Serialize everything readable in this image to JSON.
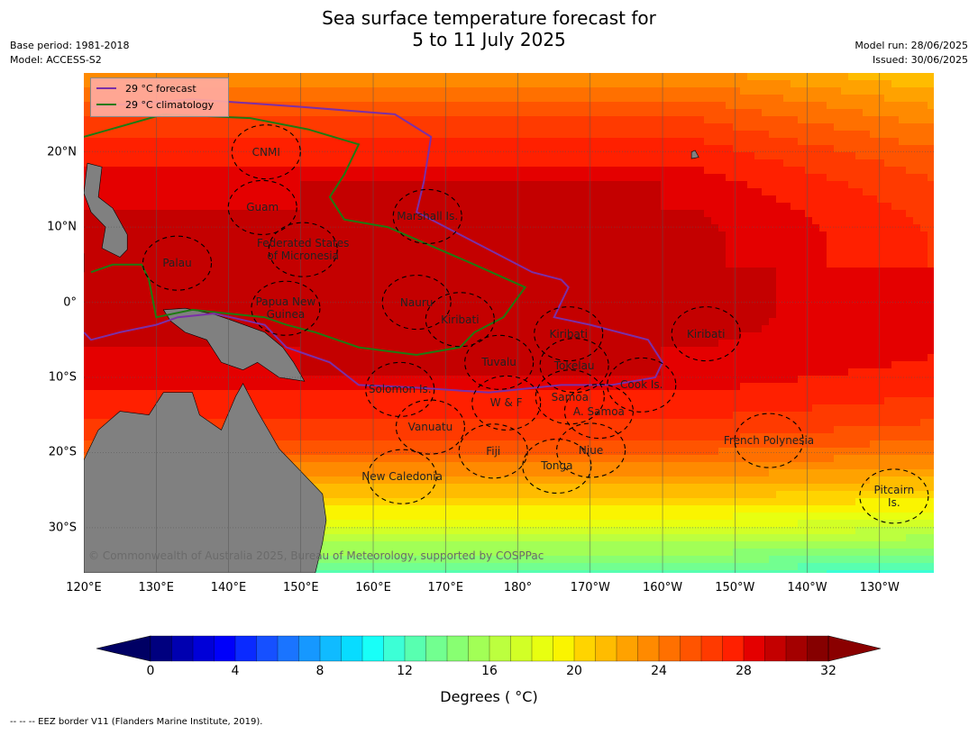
{
  "title": {
    "line1": "Sea surface temperature forecast for",
    "line2": "5 to 11 July 2025"
  },
  "meta_left": {
    "base_period": "Base period: 1981-2018",
    "model": "Model: ACCESS-S2"
  },
  "meta_right": {
    "model_run": "Model run: 28/06/2025",
    "issued": "Issued: 30/06/2025"
  },
  "legend": {
    "forecast": {
      "label": "29 °C  forecast",
      "color": "#7b2fa8"
    },
    "climatology": {
      "label": "29 °C  climatology",
      "color": "#1f7a12"
    }
  },
  "lat_ticks": [
    "20°N",
    "10°N",
    "0°",
    "10°S",
    "20°S",
    "30°S"
  ],
  "lon_ticks": [
    "120°E",
    "130°E",
    "140°E",
    "150°E",
    "160°E",
    "170°E",
    "180°",
    "170°W",
    "160°W",
    "150°W",
    "140°W",
    "130°W"
  ],
  "region_labels": [
    {
      "text": "CNMI",
      "lon": 145.2,
      "lat": 20.0
    },
    {
      "text": "Guam",
      "lon": 144.7,
      "lat": 12.6
    },
    {
      "text": "Marshall Is.",
      "lon": 167.5,
      "lat": 11.4
    },
    {
      "text": "Federated States\nof Micronesia",
      "lon": 150.3,
      "lat": 7.0
    },
    {
      "text": "Palau",
      "lon": 132.9,
      "lat": 5.2
    },
    {
      "text": "Papua New\nGuinea",
      "lon": 147.9,
      "lat": -0.8
    },
    {
      "text": "Nauru",
      "lon": 166.0,
      "lat": 0.0
    },
    {
      "text": "Kiribati",
      "lon": 172.0,
      "lat": -2.3
    },
    {
      "text": "Kiribati",
      "lon": -173.0,
      "lat": -4.2
    },
    {
      "text": "Kiribati",
      "lon": -154.0,
      "lat": -4.2
    },
    {
      "text": "Tuvalu",
      "lon": 177.4,
      "lat": -8.0
    },
    {
      "text": "Tokelau",
      "lon": -172.2,
      "lat": -8.4
    },
    {
      "text": "Cook Is.",
      "lon": -162.9,
      "lat": -11.0
    },
    {
      "text": "Solomon Is.",
      "lon": 163.7,
      "lat": -11.6
    },
    {
      "text": "Samoa",
      "lon": -172.8,
      "lat": -12.6
    },
    {
      "text": "W & F",
      "lon": 178.4,
      "lat": -13.4
    },
    {
      "text": "A. Samoa",
      "lon": -168.8,
      "lat": -14.5
    },
    {
      "text": "Vanuatu",
      "lon": 167.9,
      "lat": -16.6
    },
    {
      "text": "French Polynesia",
      "lon": -145.3,
      "lat": -18.4
    },
    {
      "text": "Fiji",
      "lon": 176.6,
      "lat": -19.8
    },
    {
      "text": "Niue",
      "lon": -169.9,
      "lat": -19.7
    },
    {
      "text": "Tonga",
      "lon": -174.6,
      "lat": -21.8
    },
    {
      "text": "New Caledonia",
      "lon": 164.0,
      "lat": -23.2
    },
    {
      "text": "Pitcairn\nIs.",
      "lon": -128.0,
      "lat": -25.8
    }
  ],
  "copyright": "© Commonwealth of Australia 2025, Bureau of Meteorology, supported by COSPPac",
  "colorbar": {
    "ticks": [
      "0",
      "4",
      "8",
      "12",
      "16",
      "20",
      "24",
      "28",
      "32"
    ],
    "min": 0,
    "max": 32,
    "step": 1,
    "colors": [
      "#00007f",
      "#0000b0",
      "#0000d8",
      "#0000fa",
      "#0a2aff",
      "#1650ff",
      "#1a74ff",
      "#1698ff",
      "#10bbff",
      "#08dcff",
      "#18fff8",
      "#3cffd6",
      "#58ffb0",
      "#72ff90",
      "#88ff72",
      "#a2ff56",
      "#bcff3e",
      "#d2ff26",
      "#e8ff10",
      "#faf400",
      "#ffd400",
      "#ffbc00",
      "#ffa200",
      "#ff8a00",
      "#ff7000",
      "#ff5400",
      "#ff3a00",
      "#ff2000",
      "#e40000",
      "#c40000",
      "#a40000",
      "#860000"
    ],
    "under_color": "#000064",
    "over_color": "#8a0000",
    "label": "Degrees ( °C)"
  },
  "eez_note": "-- --  -- EEZ border V11 (Flanders Marine Institute, 2019).",
  "map": {
    "extent": {
      "lon_min": 120,
      "lon_max": 237.5,
      "lat_min": -36,
      "lat_max": 30.5
    },
    "land_color": "#808080",
    "forecast_contour": [
      [
        121,
        26
      ],
      [
        135,
        27
      ],
      [
        150,
        26
      ],
      [
        163,
        25
      ],
      [
        168,
        22
      ],
      [
        167,
        16
      ],
      [
        166,
        12
      ],
      [
        176,
        7
      ],
      [
        182,
        4
      ],
      [
        186,
        3
      ],
      [
        187,
        2
      ],
      [
        186,
        0
      ],
      [
        185,
        -2
      ],
      [
        190,
        -3
      ],
      [
        198,
        -5
      ],
      [
        200,
        -8
      ],
      [
        199,
        -10
      ],
      [
        193,
        -11
      ],
      [
        186,
        -11
      ],
      [
        176,
        -12
      ],
      [
        165,
        -11.3
      ],
      [
        158,
        -11
      ],
      [
        154,
        -8
      ],
      [
        151,
        -7
      ],
      [
        148,
        -6
      ],
      [
        145,
        -3
      ],
      [
        138,
        -1.5
      ],
      [
        133,
        -2
      ],
      [
        130,
        -3
      ],
      [
        125,
        -4
      ],
      [
        121,
        -5
      ],
      [
        120,
        -4
      ]
    ],
    "climatology_contour": [
      [
        120,
        22
      ],
      [
        131,
        25
      ],
      [
        143,
        24.5
      ],
      [
        151,
        23
      ],
      [
        158,
        21
      ],
      [
        156,
        17
      ],
      [
        154,
        14
      ],
      [
        156,
        11
      ],
      [
        162,
        10
      ],
      [
        174,
        5
      ],
      [
        181,
        2
      ],
      [
        178,
        -2
      ],
      [
        174,
        -4
      ],
      [
        172,
        -6
      ],
      [
        166,
        -7
      ],
      [
        158,
        -6
      ],
      [
        152,
        -4
      ],
      [
        148,
        -3
      ],
      [
        145,
        -2
      ],
      [
        140,
        -1.5
      ],
      [
        135,
        -1
      ],
      [
        130,
        -2
      ],
      [
        129,
        3
      ],
      [
        128,
        5
      ],
      [
        124,
        5
      ],
      [
        121,
        4
      ]
    ]
  }
}
